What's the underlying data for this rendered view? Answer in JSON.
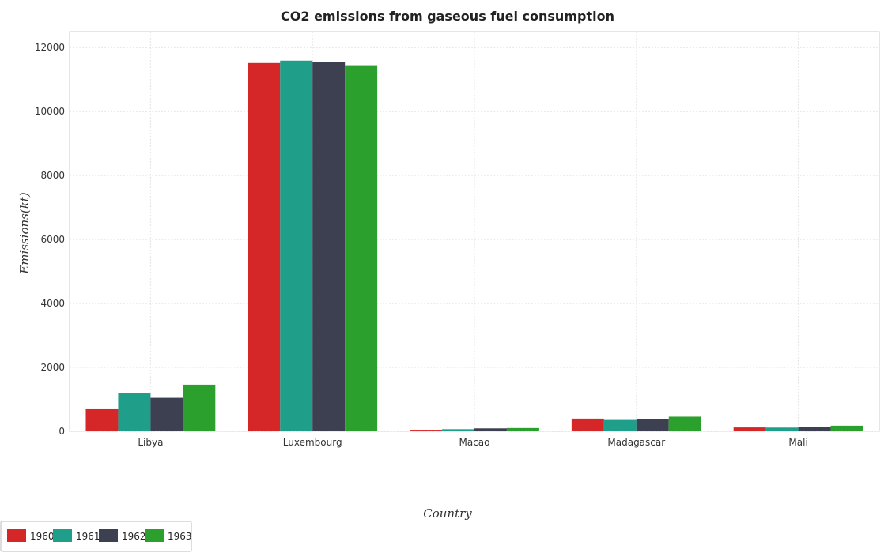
{
  "chart_data": {
    "type": "bar",
    "title": "CO2 emissions from gaseous fuel consumption",
    "xlabel": "Country",
    "ylabel": "Emissions(kt)",
    "categories": [
      "Libya",
      "Luxembourg",
      "Macao",
      "Madagascar",
      "Mali"
    ],
    "series": [
      {
        "name": "1960",
        "color": "#d62728",
        "values": [
          693,
          11517,
          48,
          398,
          121
        ]
      },
      {
        "name": "1961",
        "color": "#1f9e89",
        "values": [
          1195,
          11592,
          66,
          356,
          117
        ]
      },
      {
        "name": "1962",
        "color": "#3d4050",
        "values": [
          1048,
          11554,
          92,
          393,
          139
        ]
      },
      {
        "name": "1963",
        "color": "#2ca02c",
        "values": [
          1460,
          11448,
          103,
          458,
          176
        ]
      }
    ],
    "ylim": [
      0,
      12500
    ],
    "yticks": [
      0,
      2000,
      4000,
      6000,
      8000,
      10000,
      12000
    ],
    "grid": true,
    "legend_position": "bottom-left"
  }
}
